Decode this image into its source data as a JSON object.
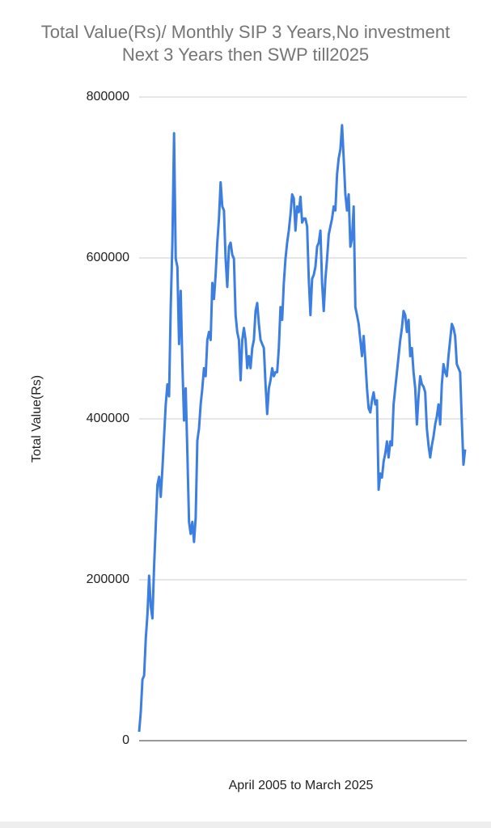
{
  "chart_data": {
    "type": "line",
    "title": "Total Value(Rs)/ Monthly SIP 3 Years,No investment Next 3 Years then SWP till2025",
    "x_label": "April 2005 to March 2025",
    "y_label": "Total Value(Rs)",
    "ylim": [
      0,
      800000
    ],
    "yticks": [
      0,
      200000,
      400000,
      600000,
      800000
    ],
    "grid": true,
    "color": "#3d7fe0",
    "values": [
      11000,
      36000,
      76000,
      81000,
      127000,
      157000,
      205000,
      167000,
      152000,
      217000,
      267000,
      318000,
      328000,
      303000,
      338000,
      378000,
      418000,
      443000,
      428000,
      539000,
      619000,
      755000,
      599000,
      589000,
      493000,
      559000,
      468000,
      398000,
      438000,
      358000,
      272000,
      257000,
      272000,
      247000,
      277000,
      373000,
      388000,
      418000,
      438000,
      463000,
      453000,
      498000,
      508000,
      498000,
      569000,
      549000,
      579000,
      619000,
      649000,
      694000,
      664000,
      659000,
      599000,
      564000,
      614000,
      619000,
      604000,
      599000,
      529000,
      508000,
      498000,
      448000,
      498000,
      513000,
      498000,
      463000,
      478000,
      463000,
      488000,
      498000,
      534000,
      544000,
      518000,
      498000,
      493000,
      488000,
      443000,
      406000,
      438000,
      448000,
      463000,
      453000,
      458000,
      458000,
      488000,
      539000,
      523000,
      569000,
      599000,
      619000,
      634000,
      654000,
      679000,
      674000,
      634000,
      664000,
      657000,
      676000,
      644000,
      649000,
      649000,
      639000,
      574000,
      529000,
      574000,
      579000,
      589000,
      614000,
      619000,
      634000,
      569000,
      534000,
      574000,
      599000,
      629000,
      639000,
      649000,
      664000,
      659000,
      704000,
      724000,
      735000,
      765000,
      724000,
      679000,
      659000,
      679000,
      614000,
      624000,
      664000,
      539000,
      529000,
      518000,
      498000,
      478000,
      503000,
      473000,
      438000,
      413000,
      408000,
      423000,
      433000,
      418000,
      423000,
      312000,
      332000,
      327000,
      347000,
      357000,
      372000,
      352000,
      372000,
      367000,
      418000,
      438000,
      458000,
      478000,
      498000,
      513000,
      534000,
      529000,
      508000,
      523000,
      478000,
      488000,
      458000,
      438000,
      393000,
      428000,
      453000,
      443000,
      440000,
      433000,
      388000,
      367000,
      352000,
      367000,
      378000,
      393000,
      403000,
      418000,
      393000,
      443000,
      468000,
      458000,
      453000,
      478000,
      498000,
      518000,
      513000,
      503000,
      468000,
      463000,
      458000,
      398000,
      343000,
      362000
    ]
  }
}
